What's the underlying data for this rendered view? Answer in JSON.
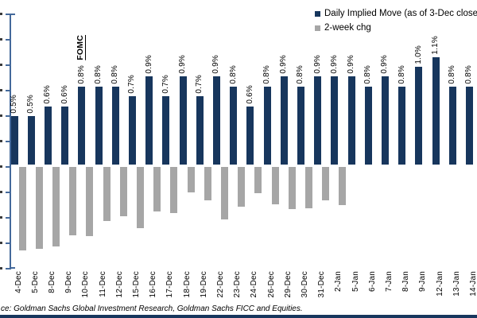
{
  "legend": {
    "series1_label": "Daily Implied Move (as of 3-Dec close)",
    "series2_label": "2-week chg"
  },
  "annotation": {
    "fomc_label": "FOMC",
    "fomc_category": "10-Dec"
  },
  "source_note": "ce: Goldman Sachs Global Investment Research, Goldman Sachs FICC and Equities.",
  "colors": {
    "navy": "#17365d",
    "gray": "#a6a6a6",
    "axis": "#44699b"
  },
  "chart_data": {
    "type": "bar",
    "title": "",
    "xlabel": "",
    "ylabel": "",
    "ylim": [
      -1.5,
      1.5
    ],
    "grid": false,
    "legend_position": "top-right",
    "y_axis_labels": "cropped-out-of-frame",
    "categories": [
      "4-Dec",
      "5-Dec",
      "8-Dec",
      "9-Dec",
      "10-Dec",
      "11-Dec",
      "12-Dec",
      "15-Dec",
      "16-Dec",
      "17-Dec",
      "18-Dec",
      "19-Dec",
      "22-Dec",
      "23-Dec",
      "24-Dec",
      "26-Dec",
      "29-Dec",
      "30-Dec",
      "31-Dec",
      "2-Jan",
      "5-Jan",
      "6-Jan",
      "7-Jan",
      "8-Jan",
      "9-Jan",
      "12-Jan",
      "13-Jan",
      "14-Jan"
    ],
    "series": [
      {
        "name": "Daily Implied Move (as of 3-Dec close)",
        "color": "#17365d",
        "unit": "%",
        "values": [
          0.5,
          0.5,
          0.6,
          0.6,
          0.8,
          0.8,
          0.8,
          0.7,
          0.9,
          0.7,
          0.9,
          0.7,
          0.9,
          0.8,
          0.6,
          0.8,
          0.9,
          0.8,
          0.9,
          0.9,
          0.9,
          0.8,
          0.9,
          0.8,
          1.0,
          1.1,
          0.8,
          0.8
        ]
      },
      {
        "name": "2-week chg",
        "color": "#a6a6a6",
        "unit": "%",
        "values": [
          -0.85,
          -0.83,
          -0.81,
          -0.69,
          -0.7,
          -0.55,
          -0.5,
          -0.62,
          -0.45,
          -0.47,
          -0.26,
          -0.34,
          -0.53,
          -0.4,
          -0.27,
          -0.38,
          -0.43,
          -0.42,
          -0.34,
          -0.39,
          null,
          null,
          null,
          null,
          null,
          null,
          null,
          null
        ]
      }
    ],
    "annotations": [
      {
        "text": "FOMC",
        "category": "10-Dec",
        "style": "bold underline, rotated"
      }
    ]
  }
}
